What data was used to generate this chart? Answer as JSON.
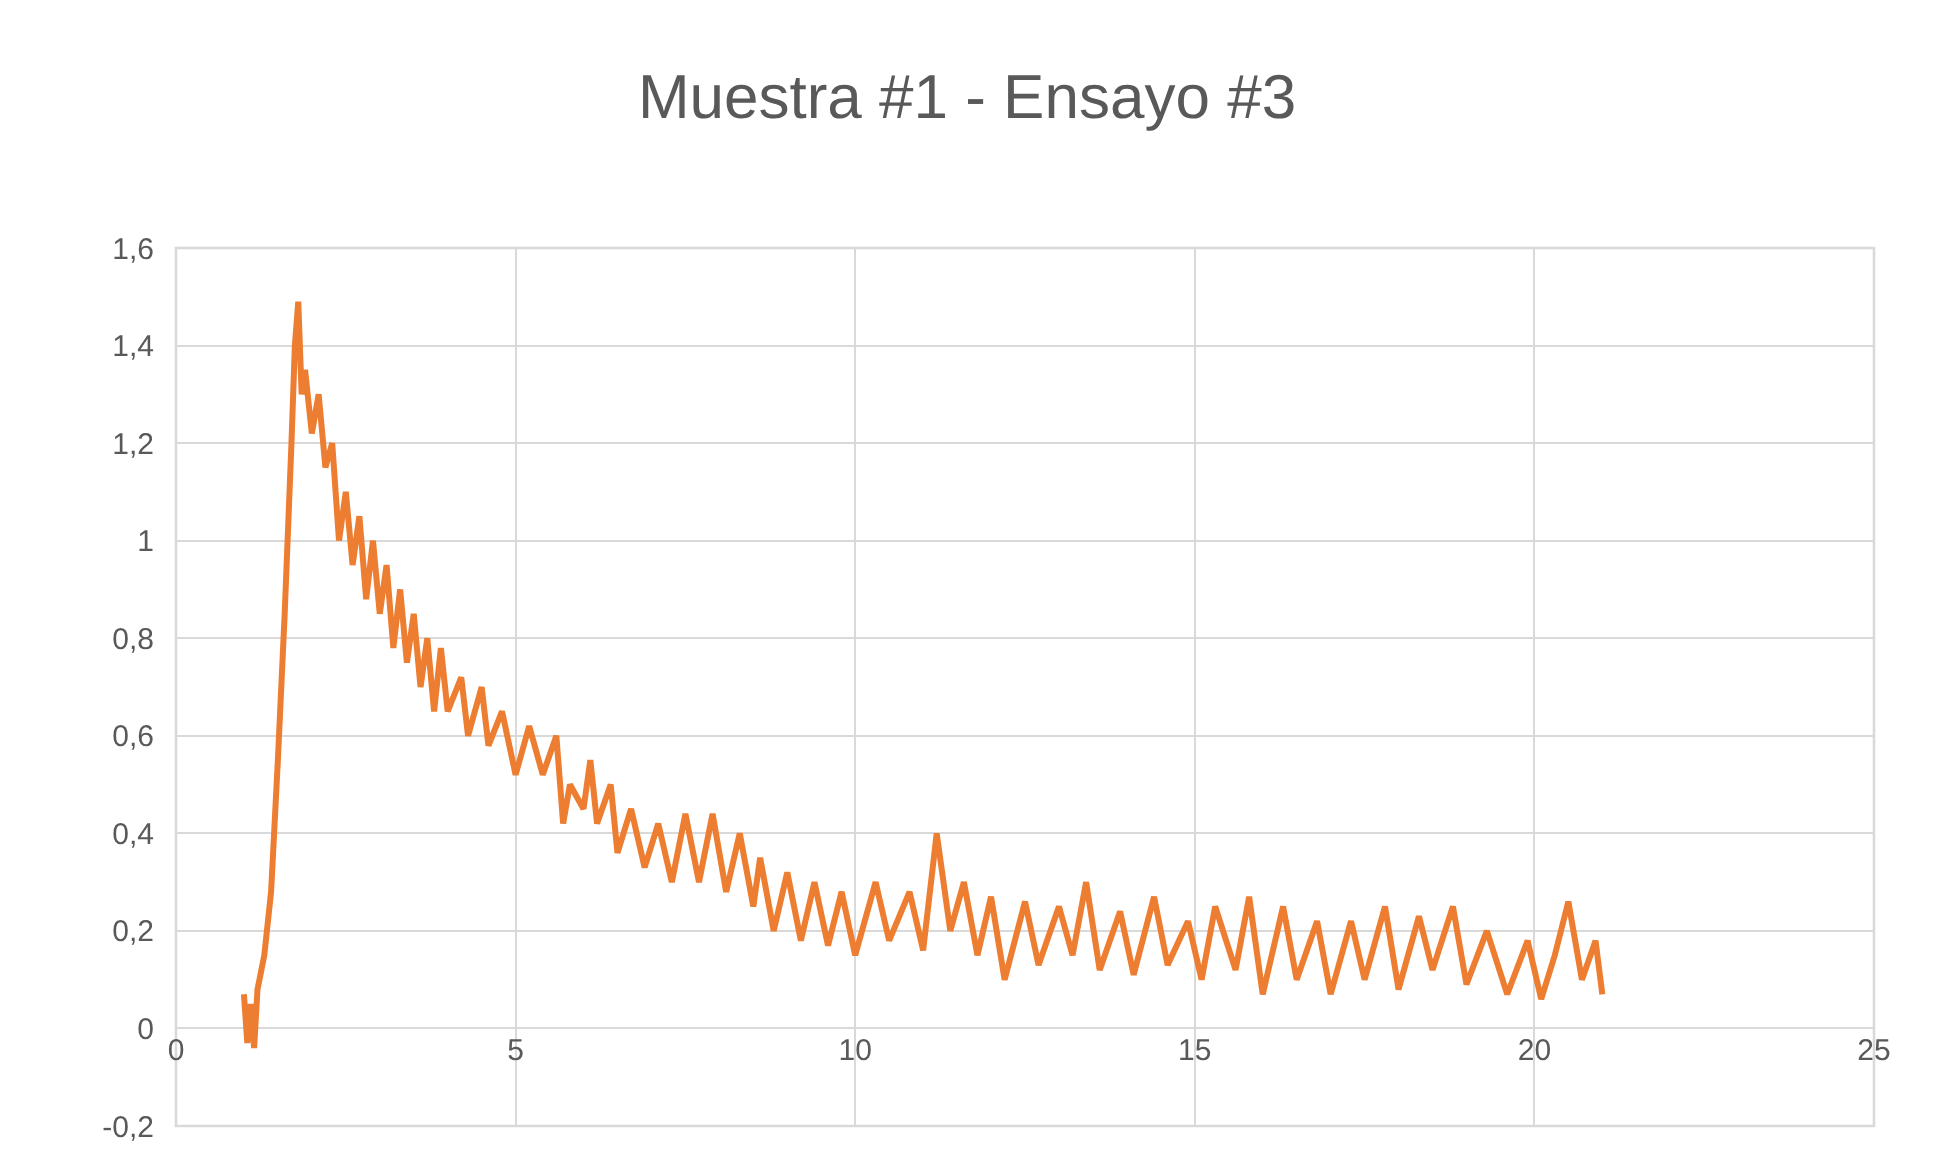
{
  "chart_data": {
    "type": "line",
    "title": "Muestra #1 - Ensayo #3",
    "x": [
      1.0,
      1.05,
      1.1,
      1.15,
      1.2,
      1.3,
      1.4,
      1.5,
      1.6,
      1.7,
      1.75,
      1.8,
      1.85,
      1.9,
      2.0,
      2.1,
      2.2,
      2.3,
      2.4,
      2.5,
      2.6,
      2.7,
      2.8,
      2.9,
      3.0,
      3.1,
      3.2,
      3.3,
      3.4,
      3.5,
      3.6,
      3.7,
      3.8,
      3.9,
      4.0,
      4.2,
      4.3,
      4.5,
      4.6,
      4.8,
      5.0,
      5.2,
      5.4,
      5.6,
      5.7,
      5.8,
      6.0,
      6.1,
      6.2,
      6.4,
      6.5,
      6.7,
      6.9,
      7.1,
      7.3,
      7.5,
      7.7,
      7.9,
      8.1,
      8.3,
      8.5,
      8.6,
      8.8,
      9.0,
      9.2,
      9.4,
      9.6,
      9.8,
      10.0,
      10.3,
      10.5,
      10.8,
      11.0,
      11.2,
      11.4,
      11.6,
      11.8,
      12.0,
      12.2,
      12.5,
      12.7,
      13.0,
      13.2,
      13.4,
      13.6,
      13.9,
      14.1,
      14.4,
      14.6,
      14.9,
      15.1,
      15.3,
      15.6,
      15.8,
      16.0,
      16.3,
      16.5,
      16.8,
      17.0,
      17.3,
      17.5,
      17.8,
      18.0,
      18.3,
      18.5,
      18.8,
      19.0,
      19.3,
      19.6,
      19.9,
      20.1,
      20.3,
      20.5,
      20.7,
      20.9,
      21.0
    ],
    "series": [
      {
        "color": "#ed7d31",
        "values": [
          0.07,
          -0.03,
          0.05,
          -0.04,
          0.08,
          0.15,
          0.28,
          0.55,
          0.85,
          1.2,
          1.4,
          1.49,
          1.3,
          1.35,
          1.22,
          1.3,
          1.15,
          1.2,
          1.0,
          1.1,
          0.95,
          1.05,
          0.88,
          1.0,
          0.85,
          0.95,
          0.78,
          0.9,
          0.75,
          0.85,
          0.7,
          0.8,
          0.65,
          0.78,
          0.65,
          0.72,
          0.6,
          0.7,
          0.58,
          0.65,
          0.52,
          0.62,
          0.52,
          0.6,
          0.42,
          0.5,
          0.45,
          0.55,
          0.42,
          0.5,
          0.36,
          0.45,
          0.33,
          0.42,
          0.3,
          0.44,
          0.3,
          0.44,
          0.28,
          0.4,
          0.25,
          0.35,
          0.2,
          0.32,
          0.18,
          0.3,
          0.17,
          0.28,
          0.15,
          0.3,
          0.18,
          0.28,
          0.16,
          0.4,
          0.2,
          0.3,
          0.15,
          0.27,
          0.1,
          0.26,
          0.13,
          0.25,
          0.15,
          0.3,
          0.12,
          0.24,
          0.11,
          0.27,
          0.13,
          0.22,
          0.1,
          0.25,
          0.12,
          0.27,
          0.07,
          0.25,
          0.1,
          0.22,
          0.07,
          0.22,
          0.1,
          0.25,
          0.08,
          0.23,
          0.12,
          0.25,
          0.09,
          0.2,
          0.07,
          0.18,
          0.06,
          0.15,
          0.26,
          0.1,
          0.18,
          0.07
        ]
      }
    ],
    "xlim": [
      0,
      25
    ],
    "xticks": [
      0,
      5,
      10,
      15,
      20,
      25
    ],
    "ylim": [
      -0.2,
      1.6
    ],
    "yticks": [
      {
        "value": -0.2,
        "label": "-0,2"
      },
      {
        "value": 0,
        "label": "0"
      },
      {
        "value": 0.2,
        "label": "0,2"
      },
      {
        "value": 0.4,
        "label": "0,4"
      },
      {
        "value": 0.6,
        "label": "0,6"
      },
      {
        "value": 0.8,
        "label": "0,8"
      },
      {
        "value": 1,
        "label": "1"
      },
      {
        "value": 1.2,
        "label": "1,2"
      },
      {
        "value": 1.4,
        "label": "1,4"
      },
      {
        "value": 1.6,
        "label": "1,6"
      }
    ],
    "grid": true,
    "marker": "none",
    "line_style": "solid"
  }
}
